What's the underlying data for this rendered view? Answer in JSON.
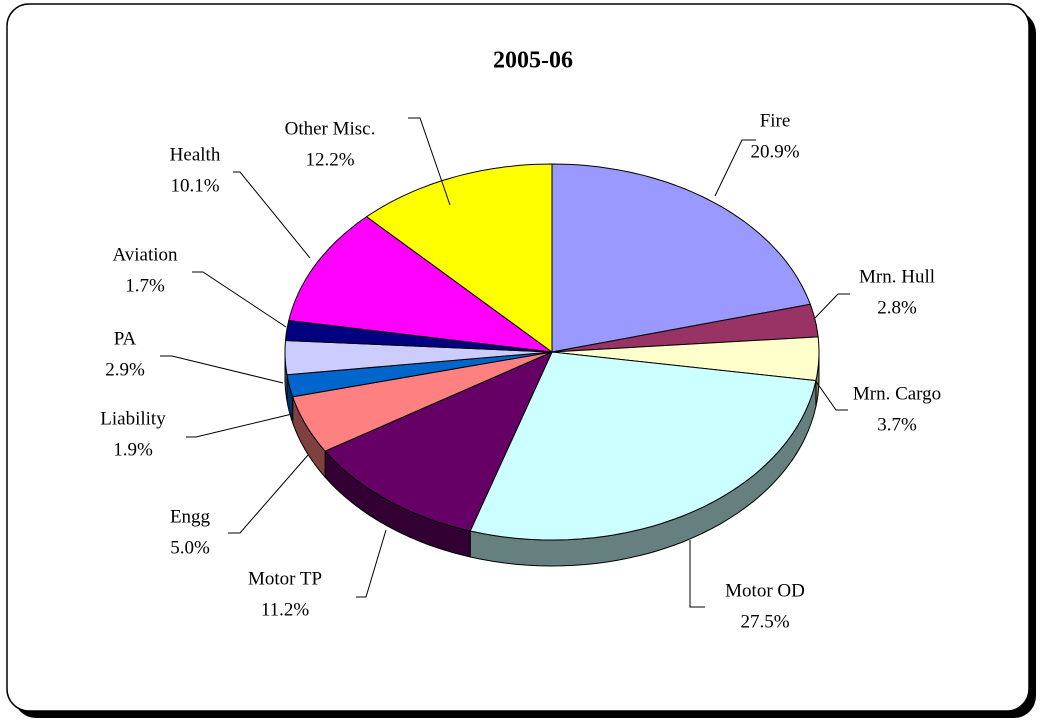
{
  "chart_data": {
    "type": "pie",
    "title": "2005-06",
    "categories": [
      "Fire",
      "Mrn. Hull",
      "Mrn. Cargo",
      "Motor OD",
      "Motor TP",
      "Engg",
      "Liability",
      "PA",
      "Aviation",
      "Health",
      "Other Misc."
    ],
    "values": [
      20.9,
      2.8,
      3.7,
      27.5,
      11.2,
      5.0,
      1.9,
      2.9,
      1.7,
      10.1,
      12.2
    ],
    "value_labels": [
      "20.9%",
      "2.8%",
      "3.7%",
      "27.5%",
      "11.2%",
      "5.0%",
      "1.9%",
      "2.9%",
      "1.7%",
      "10.1%",
      "12.2%"
    ],
    "colors": [
      "#9999ff",
      "#993366",
      "#ffffcc",
      "#ccffff",
      "#660066",
      "#ff8080",
      "#0066cc",
      "#ccccff",
      "#000080",
      "#ff00ff",
      "#ffff00"
    ]
  }
}
